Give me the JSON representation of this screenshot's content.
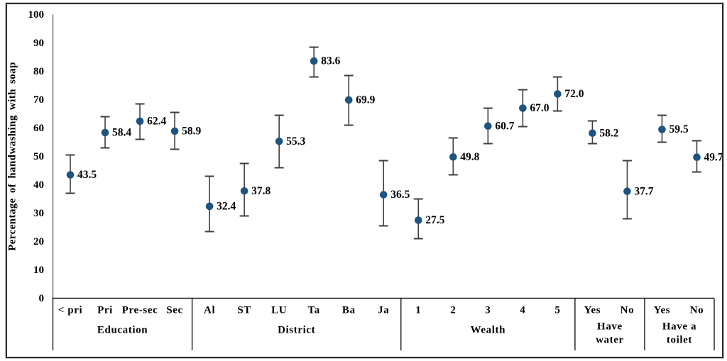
{
  "figure": {
    "background": "#ffffff",
    "border_color": "#2b2b2b"
  },
  "chart_data": {
    "type": "scatter",
    "title": "",
    "xlabel": "",
    "ylabel": "Percentage of handwashing with soap",
    "ylim": [
      0,
      100
    ],
    "yticks": [
      0,
      10,
      20,
      30,
      40,
      50,
      60,
      70,
      80,
      90,
      100
    ],
    "grid": false,
    "legend": false,
    "error_bars": true,
    "marker_color": "#1F5480",
    "error_bar_color": "#3f3f3f",
    "axis_color": "#595959",
    "separator_color": "#1a1a1a",
    "groups": [
      {
        "label": "Education",
        "label_lines": [
          "Education"
        ],
        "categories": [
          "< pri",
          "Pri",
          "Pre-sec",
          "Sec"
        ],
        "points": [
          {
            "category": "< pri",
            "value": 43.5,
            "label": "43.5",
            "ci_low": 37.0,
            "ci_high": 50.5
          },
          {
            "category": "Pri",
            "value": 58.4,
            "label": "58.4",
            "ci_low": 53.0,
            "ci_high": 64.0
          },
          {
            "category": "Pre-sec",
            "value": 62.4,
            "label": "62.4",
            "ci_low": 56.0,
            "ci_high": 68.5
          },
          {
            "category": "Sec",
            "value": 58.9,
            "label": "58.9",
            "ci_low": 52.5,
            "ci_high": 65.5
          }
        ]
      },
      {
        "label": "District",
        "label_lines": [
          "District"
        ],
        "categories": [
          "Al",
          "ST",
          "LU",
          "Ta",
          "Ba",
          "Ja"
        ],
        "points": [
          {
            "category": "Al",
            "value": 32.4,
            "label": "32.4",
            "ci_low": 23.5,
            "ci_high": 43.0
          },
          {
            "category": "ST",
            "value": 37.8,
            "label": "37.8",
            "ci_low": 29.0,
            "ci_high": 47.5
          },
          {
            "category": "LU",
            "value": 55.3,
            "label": "55.3",
            "ci_low": 46.0,
            "ci_high": 64.5
          },
          {
            "category": "Ta",
            "value": 83.6,
            "label": "83.6",
            "ci_low": 78.0,
            "ci_high": 88.5
          },
          {
            "category": "Ba",
            "value": 69.9,
            "label": "69.9",
            "ci_low": 61.0,
            "ci_high": 78.5
          },
          {
            "category": "Ja",
            "value": 36.5,
            "label": "36.5",
            "ci_low": 25.5,
            "ci_high": 48.5
          }
        ]
      },
      {
        "label": "Wealth",
        "label_lines": [
          "Wealth"
        ],
        "categories": [
          "1",
          "2",
          "3",
          "4",
          "5"
        ],
        "points": [
          {
            "category": "1",
            "value": 27.5,
            "label": "27.5",
            "ci_low": 21.0,
            "ci_high": 35.0
          },
          {
            "category": "2",
            "value": 49.8,
            "label": "49.8",
            "ci_low": 43.5,
            "ci_high": 56.5
          },
          {
            "category": "3",
            "value": 60.7,
            "label": "60.7",
            "ci_low": 54.5,
            "ci_high": 67.0
          },
          {
            "category": "4",
            "value": 67.0,
            "label": "67.0",
            "ci_low": 60.5,
            "ci_high": 73.5
          },
          {
            "category": "5",
            "value": 72.0,
            "label": "72.0",
            "ci_low": 66.0,
            "ci_high": 78.0
          }
        ]
      },
      {
        "label": "Have water",
        "label_lines": [
          "Have",
          "water"
        ],
        "categories": [
          "Yes",
          "No"
        ],
        "points": [
          {
            "category": "Yes",
            "value": 58.2,
            "label": "58.2",
            "ci_low": 54.5,
            "ci_high": 62.5
          },
          {
            "category": "No",
            "value": 37.7,
            "label": "37.7",
            "ci_low": 28.0,
            "ci_high": 48.5
          }
        ]
      },
      {
        "label": "Have a toilet",
        "label_lines": [
          "Have a",
          "toilet"
        ],
        "categories": [
          "Yes",
          "No"
        ],
        "points": [
          {
            "category": "Yes",
            "value": 59.5,
            "label": "59.5",
            "ci_low": 55.0,
            "ci_high": 64.5
          },
          {
            "category": "No",
            "value": 49.7,
            "label": "49.7",
            "ci_low": 44.5,
            "ci_high": 55.5
          }
        ]
      }
    ]
  }
}
